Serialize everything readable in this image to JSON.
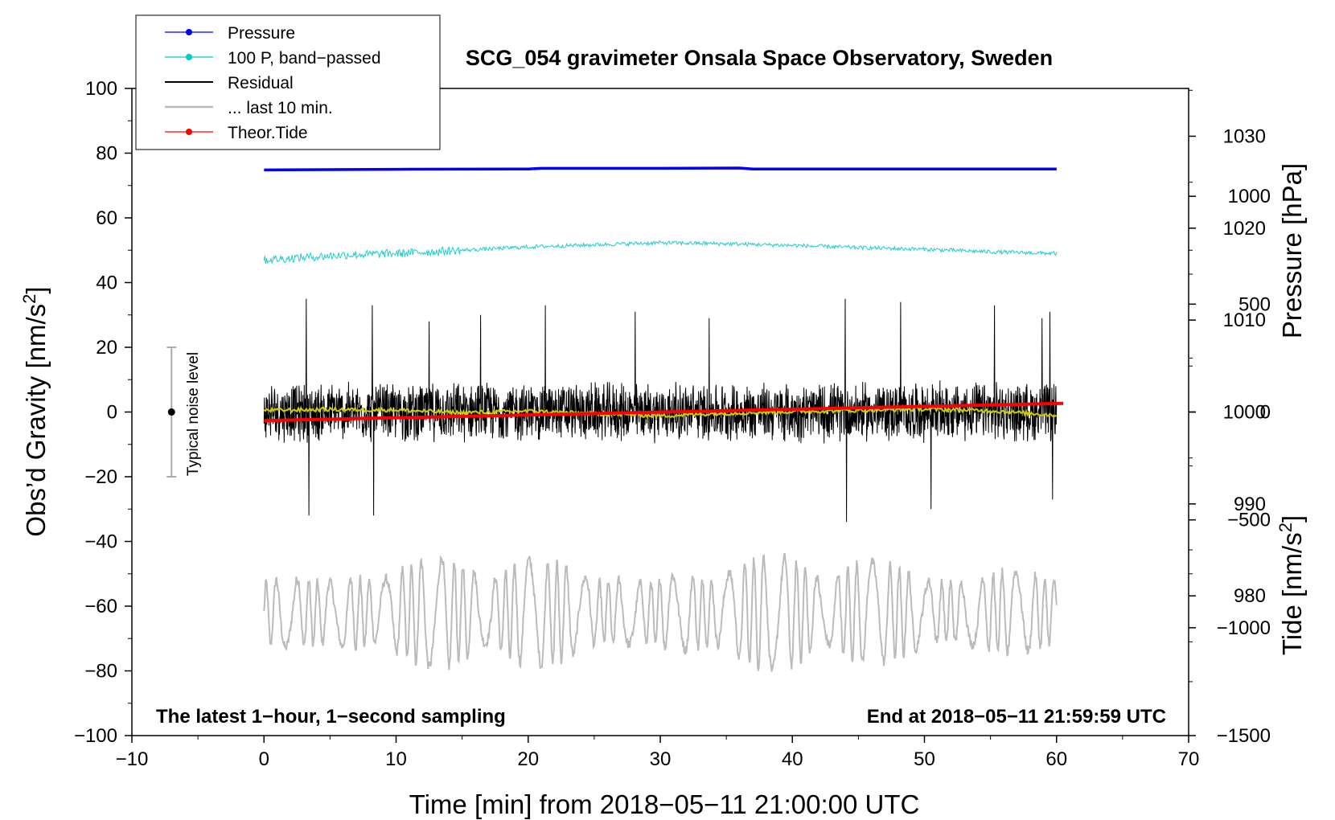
{
  "chart_data": {
    "type": "line",
    "title": "SCG_054 gravimeter Onsala Space Observatory, Sweden",
    "xlabel": "Time [min] from 2018−05−11 21:00:00 UTC",
    "ylabel_main": "Obs’d Gravity [nm/s",
    "ylabel_main_sup": "2",
    "ylabel_main_end": "]",
    "ylabel_pressure": "Pressure [hPa]",
    "ylabel_tide": "Tide [nm/s",
    "ylabel_tide_sup": "2",
    "ylabel_tide_end": "]",
    "xlim": [
      -10,
      70
    ],
    "ylim": [
      -100,
      100
    ],
    "pressure_lim": [
      964.8,
      1035.2
    ],
    "tide_lim": [
      -1500,
      1500
    ],
    "x_ticks": [
      {
        "value": -10,
        "label": "−10"
      },
      {
        "value": 0,
        "label": "0"
      },
      {
        "value": 10,
        "label": "10"
      },
      {
        "value": 20,
        "label": "20"
      },
      {
        "value": 30,
        "label": "30"
      },
      {
        "value": 40,
        "label": "40"
      },
      {
        "value": 50,
        "label": "50"
      },
      {
        "value": 60,
        "label": "60"
      },
      {
        "value": 70,
        "label": "70"
      }
    ],
    "y_ticks": [
      {
        "value": 100,
        "label": "100"
      },
      {
        "value": 80,
        "label": "80"
      },
      {
        "value": 60,
        "label": "60"
      },
      {
        "value": 40,
        "label": "40"
      },
      {
        "value": 20,
        "label": "20"
      },
      {
        "value": 0,
        "label": "0"
      },
      {
        "value": -20,
        "label": "−20"
      },
      {
        "value": -40,
        "label": "−40"
      },
      {
        "value": -60,
        "label": "−60"
      },
      {
        "value": -80,
        "label": "−80"
      },
      {
        "value": -100,
        "label": "−100"
      }
    ],
    "pressure_ticks": [
      {
        "value": 1030,
        "label": "1030"
      },
      {
        "value": 1020,
        "label": "1020"
      },
      {
        "value": 1010,
        "label": "1010"
      },
      {
        "value": 1000,
        "label": "1000"
      },
      {
        "value": 990,
        "label": "990"
      },
      {
        "value": 980,
        "label": "980"
      }
    ],
    "tide_ticks": [
      {
        "value": 1000,
        "label": "1000"
      },
      {
        "value": 500,
        "label": "500"
      },
      {
        "value": 0,
        "label": "0"
      },
      {
        "value": -500,
        "label": "−500"
      },
      {
        "value": -1000,
        "label": "−1000"
      },
      {
        "value": -1500,
        "label": "−1500"
      }
    ],
    "legend": [
      {
        "label": "Pressure",
        "color": "#0000ff",
        "marker": true
      },
      {
        "label": "100 P, band−passed",
        "color": "#00cccc",
        "marker": true
      },
      {
        "label": "Residual",
        "color": "#000000",
        "marker": false
      },
      {
        "label": "... last 10 min.",
        "color": "#bbbbbb",
        "marker": false
      },
      {
        "label": "Theor.Tide",
        "color": "#ff0000",
        "marker": true
      }
    ],
    "notes": {
      "left": "The latest 1−hour, 1−second sampling",
      "right": "End at 2018−05−11 21:59:59 UTC",
      "noise": "Typical noise level"
    },
    "noise_bar": {
      "x": -7,
      "center": 0,
      "half_range": 20
    },
    "series": [
      {
        "name": "Pressure",
        "color": "#0000ff",
        "axis": "main",
        "x": [
          0,
          10,
          20,
          21,
          30,
          36,
          37,
          45,
          50,
          60
        ],
        "y": [
          74.8,
          75.0,
          75.1,
          75.3,
          75.3,
          75.4,
          75.1,
          75.1,
          75.1,
          75.1
        ]
      },
      {
        "name": "100 P, band−passed",
        "color": "#22cccc",
        "axis": "main",
        "x": [
          0,
          3,
          6,
          10,
          15,
          20,
          25,
          30,
          35,
          40,
          45,
          50,
          55,
          60
        ],
        "y": [
          47.0,
          47.8,
          48.5,
          49.0,
          50.0,
          51.0,
          51.7,
          52.3,
          52.0,
          51.5,
          50.8,
          50.3,
          49.5,
          49.0
        ],
        "noise_amplitude": 1.0
      },
      {
        "name": "Residual",
        "color": "#000000",
        "axis": "main",
        "x_range": [
          0,
          60
        ],
        "mean": 0,
        "amplitude": 9,
        "spikes": [
          [
            3.2,
            35
          ],
          [
            3.4,
            -32
          ],
          [
            8.2,
            33
          ],
          [
            8.3,
            -32
          ],
          [
            12.5,
            28
          ],
          [
            16.4,
            30
          ],
          [
            21.3,
            33
          ],
          [
            28.1,
            31
          ],
          [
            33.7,
            29
          ],
          [
            44.0,
            35
          ],
          [
            44.1,
            -34
          ],
          [
            48.2,
            34
          ],
          [
            50.5,
            -30
          ],
          [
            55.3,
            33
          ],
          [
            58.9,
            29
          ],
          [
            59.5,
            31
          ],
          [
            59.7,
            -27
          ]
        ]
      },
      {
        "name": "Residual smoothed",
        "color": "#cccc00",
        "axis": "main",
        "x": [
          0,
          5,
          10,
          15,
          20,
          25,
          30,
          35,
          40,
          45,
          50,
          55,
          60
        ],
        "y": [
          0.5,
          0.8,
          0.6,
          -0.2,
          0.3,
          -0.5,
          -1.2,
          -0.4,
          0.1,
          0.5,
          0.9,
          0.4,
          -1.0
        ]
      },
      {
        "name": "... last 10 min.",
        "color": "#bbbbbb",
        "axis": "main",
        "x_range": [
          0,
          60
        ],
        "mean": -62,
        "amplitude": 18
      },
      {
        "name": "Theor.Tide",
        "color": "#ff0000",
        "axis": "tide",
        "x": [
          0,
          60.5
        ],
        "y": [
          -40,
          40
        ]
      }
    ]
  }
}
